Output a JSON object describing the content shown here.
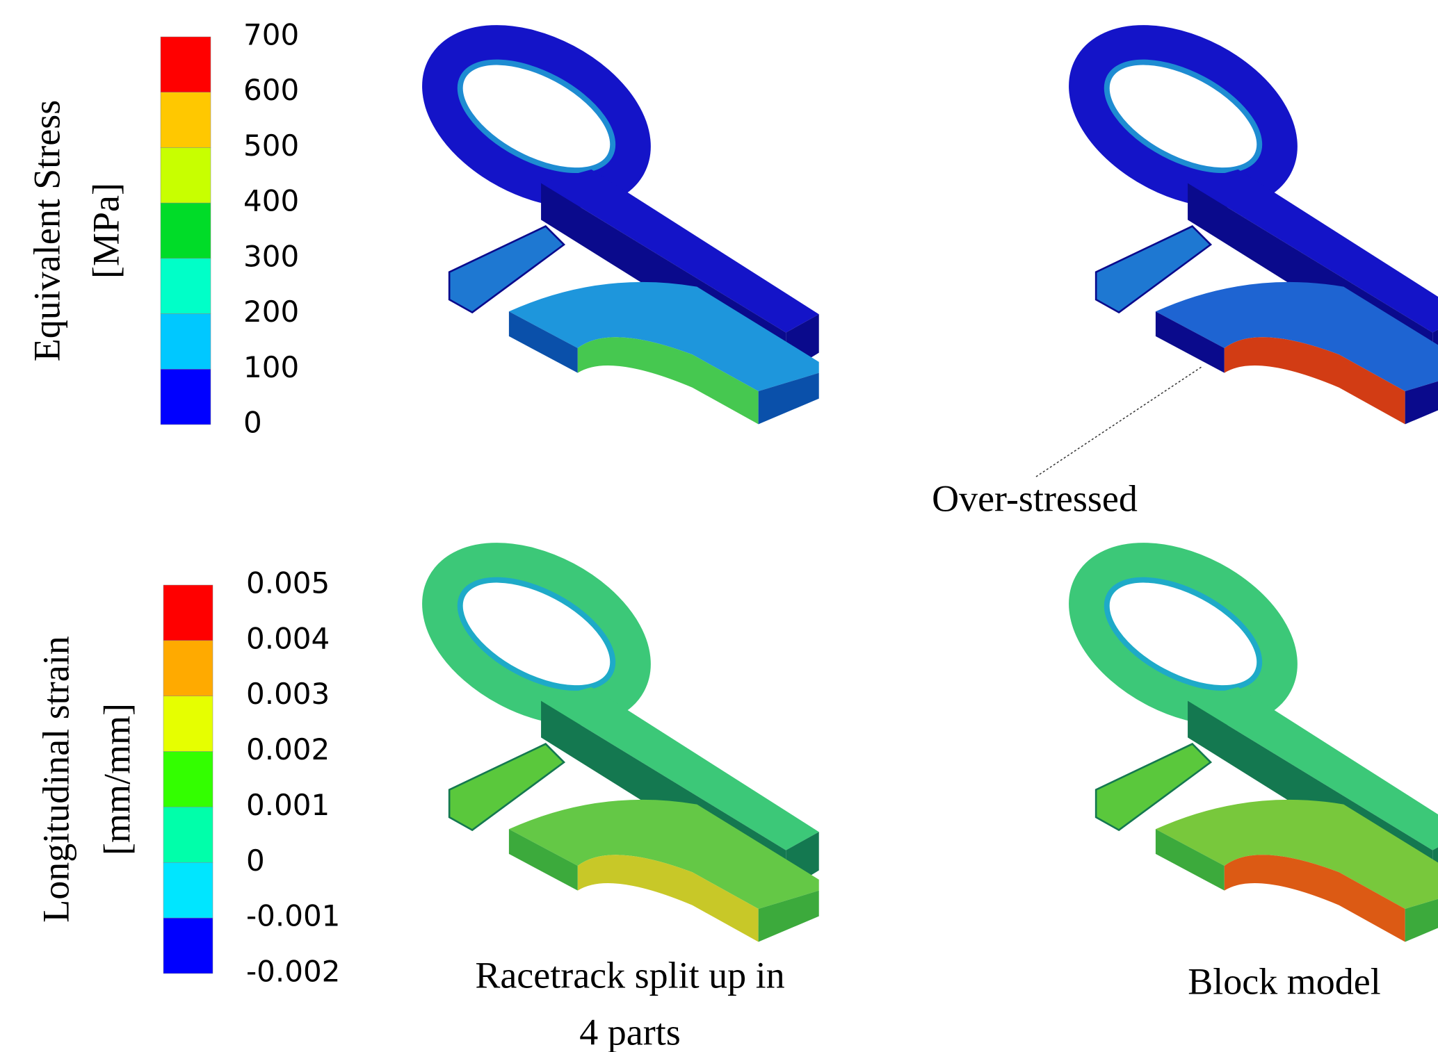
{
  "legends": [
    {
      "title": [
        "Equivalent Stress",
        "[MPa]"
      ],
      "labels": [
        "700",
        "600",
        "500",
        "400",
        "300",
        "200",
        "100",
        "0"
      ],
      "colors": [
        "#ff0000",
        "#ffc800",
        "#c8ff00",
        "#00dc28",
        "#00ffc8",
        "#00c8ff",
        "#0000ff"
      ]
    },
    {
      "title": [
        "Longitudinal strain",
        "[mm/mm]"
      ],
      "labels": [
        "0.005",
        "0.004",
        "0.003",
        "0.002",
        "0.001",
        "0",
        "-0.001",
        "-0.002"
      ],
      "colors": [
        "#ff0000",
        "#ffaa00",
        "#e6ff00",
        "#33ff00",
        "#00ffaa",
        "#00e6ff",
        "#0000ff"
      ]
    }
  ],
  "annotation": "Over-stressed",
  "captions": {
    "left": [
      "Racetrack split up in",
      "4 parts"
    ],
    "right": "Block model"
  }
}
